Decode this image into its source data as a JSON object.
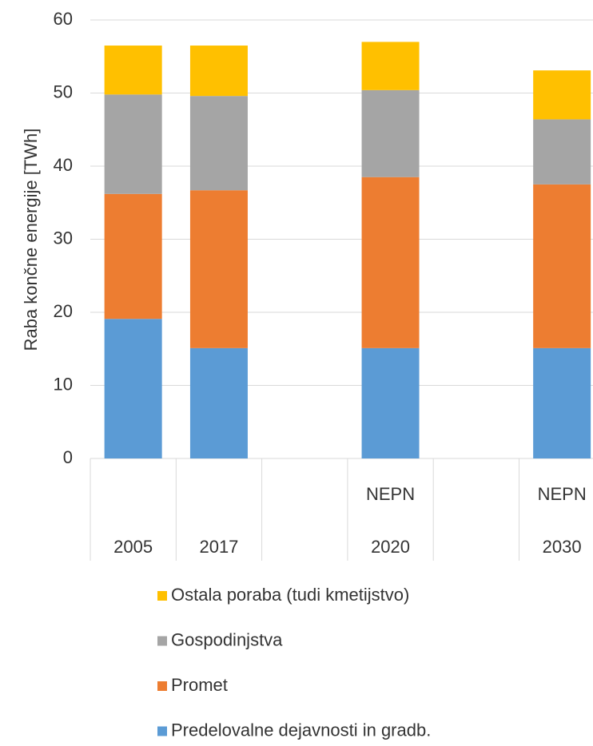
{
  "chart_data": {
    "type": "stacked_bar",
    "y_axis_label": "Raba končne energije  [TWh]",
    "categories": [
      "2005",
      "2017",
      null,
      "2020",
      null,
      "2030"
    ],
    "category_groups": [
      null,
      null,
      null,
      "NEPN",
      null,
      "NEPN"
    ],
    "series": [
      {
        "name": "Predelovalne dejavnosti in gradb.",
        "color": "#5b9bd5",
        "values": [
          19.1,
          15.1,
          null,
          15.1,
          null,
          15.1
        ]
      },
      {
        "name": "Promet",
        "color": "#ed7d31",
        "values": [
          17.1,
          21.6,
          null,
          23.4,
          null,
          22.4
        ]
      },
      {
        "name": "Gospodinjstva",
        "color": "#a5a5a5",
        "values": [
          13.6,
          12.9,
          null,
          11.9,
          null,
          8.9
        ]
      },
      {
        "name": "Ostala poraba (tudi kmetijstvo)",
        "color": "#ffc000",
        "values": [
          6.7,
          6.9,
          null,
          6.6,
          null,
          6.7
        ]
      }
    ],
    "ylim": [
      0,
      60
    ],
    "yticks": [
      0,
      10,
      20,
      30,
      40,
      50,
      60
    ],
    "grid": true
  }
}
